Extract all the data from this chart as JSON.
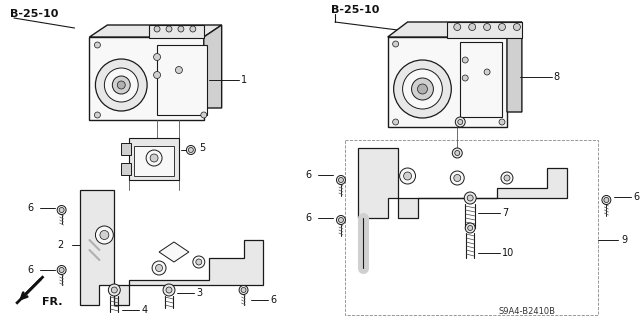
{
  "bg_color": "#ffffff",
  "fig_width": 6.4,
  "fig_height": 3.19,
  "header_left": "B-25-10",
  "header_right": "B-25-10",
  "footer_code": "S9A4-B2410B",
  "lc": "#1a1a1a",
  "fc_light": "#e8e8e8",
  "fc_mid": "#d0d0d0",
  "fc_dark": "#b0b0b0",
  "fc_white": "#f8f8f8"
}
